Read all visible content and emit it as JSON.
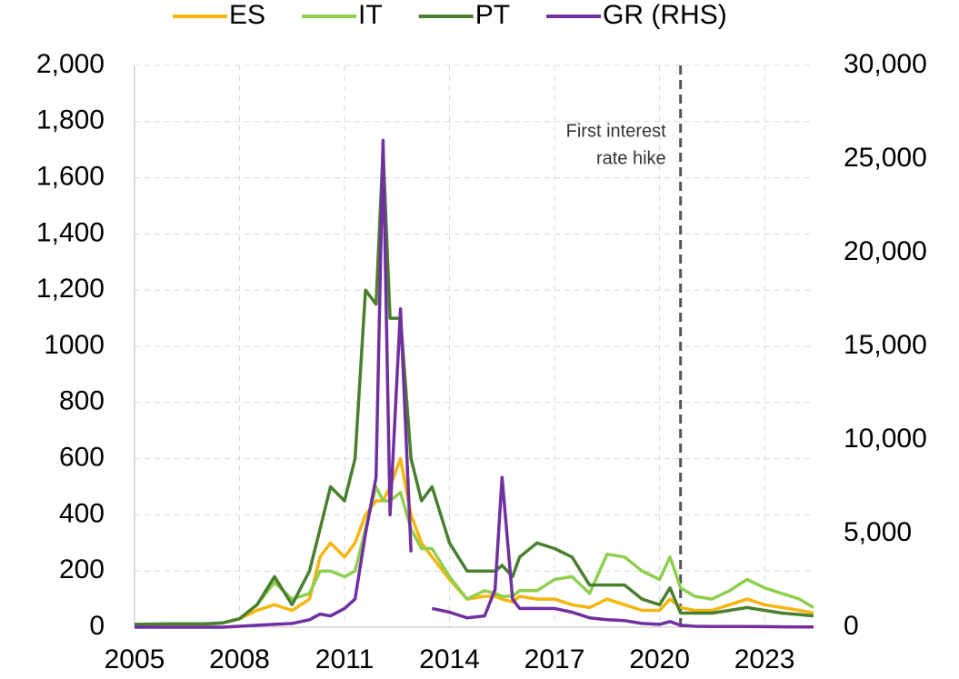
{
  "chart_data": {
    "type": "line",
    "x": [
      2005,
      2006,
      2007,
      2007.5,
      2008,
      2008.5,
      2009,
      2009.5,
      2010,
      2010.3,
      2010.6,
      2011,
      2011.3,
      2011.6,
      2011.9,
      2012.1,
      2012.3,
      2012.6,
      2012.9,
      2013.2,
      2013.5,
      2014,
      2014.5,
      2015,
      2015.3,
      2015.5,
      2015.8,
      2016,
      2016.5,
      2017,
      2017.5,
      2018,
      2018.5,
      2019,
      2019.5,
      2020,
      2020.3,
      2020.6,
      2021,
      2021.5,
      2022,
      2022.5,
      2023,
      2023.5,
      2024,
      2024.4
    ],
    "series": [
      {
        "name": "ES",
        "color": "#f5b50e",
        "values": [
          10,
          10,
          10,
          15,
          30,
          60,
          80,
          60,
          100,
          250,
          300,
          250,
          300,
          400,
          450,
          450,
          500,
          600,
          400,
          300,
          250,
          170,
          100,
          110,
          110,
          100,
          90,
          110,
          100,
          100,
          80,
          70,
          100,
          80,
          60,
          60,
          100,
          70,
          60,
          60,
          80,
          100,
          80,
          70,
          60,
          50
        ]
      },
      {
        "name": "IT",
        "color": "#8fce4e",
        "values": [
          10,
          10,
          10,
          15,
          30,
          80,
          160,
          100,
          120,
          200,
          200,
          180,
          200,
          350,
          500,
          450,
          450,
          480,
          350,
          280,
          280,
          180,
          100,
          130,
          120,
          110,
          110,
          130,
          130,
          170,
          180,
          120,
          260,
          250,
          200,
          170,
          250,
          140,
          110,
          100,
          130,
          170,
          140,
          120,
          100,
          70
        ]
      },
      {
        "name": "PT",
        "color": "#4a7f2e",
        "values": [
          10,
          12,
          12,
          15,
          30,
          80,
          180,
          80,
          200,
          350,
          500,
          450,
          600,
          1200,
          1150,
          1700,
          1100,
          1100,
          600,
          450,
          500,
          300,
          200,
          200,
          200,
          220,
          180,
          250,
          300,
          280,
          250,
          150,
          150,
          150,
          100,
          80,
          140,
          50,
          50,
          50,
          60,
          70,
          60,
          50,
          45,
          40
        ]
      },
      {
        "name": "GR (RHS)",
        "color": "#7030a0",
        "axis": "y2",
        "values": [
          0,
          0,
          0,
          0,
          50,
          100,
          150,
          200,
          400,
          700,
          600,
          1000,
          1500,
          5000,
          8000,
          26000,
          6000,
          17000,
          4000,
          null,
          1000,
          800,
          500,
          600,
          2000,
          8000,
          1500,
          1000,
          1000,
          1000,
          800,
          500,
          400,
          350,
          200,
          150,
          300,
          100,
          50,
          40,
          40,
          40,
          30,
          20,
          15,
          15
        ]
      }
    ],
    "xlim": [
      2005,
      2024.4
    ],
    "xticks": [
      2005,
      2008,
      2011,
      2014,
      2017,
      2020,
      2023
    ],
    "ylim": [
      0,
      2000
    ],
    "yticks": [
      0,
      200,
      400,
      600,
      800,
      1000,
      {
        "value": 1200,
        "label": "1,200"
      },
      {
        "value": 1400,
        "label": "1,400"
      },
      {
        "value": 1600,
        "label": "1,600"
      },
      {
        "value": 1800,
        "label": "1,800"
      },
      {
        "value": 2000,
        "label": "2,000"
      }
    ],
    "y2lim": [
      0,
      30000
    ],
    "y2ticks": [
      0,
      {
        "value": 5000,
        "label": "5,000"
      },
      {
        "value": 10000,
        "label": "10,000"
      },
      {
        "value": 15000,
        "label": "15,000"
      },
      {
        "value": 20000,
        "label": "20,000"
      },
      {
        "value": 25000,
        "label": "25,000"
      },
      {
        "value": 30000,
        "label": "30,000"
      }
    ],
    "grid": true,
    "legend": "top",
    "annotation": {
      "text": [
        "First interest",
        "rate hike"
      ],
      "x": 2020.6
    }
  }
}
